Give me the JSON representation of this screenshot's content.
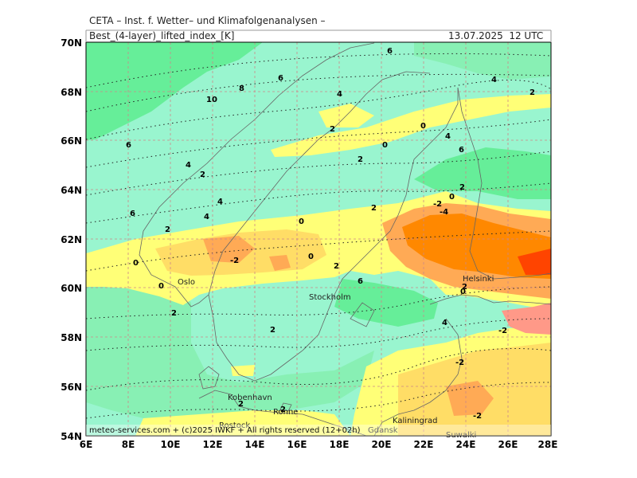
{
  "header": {
    "org": "CETA – Inst. f. Wetter– und Klimafolgenanalysen –",
    "title": "Best_(4-layer)_lifted_index_[K]",
    "datetime": "13.07.2025  12 UTC"
  },
  "axes": {
    "lat_ticks": [
      "70N",
      "68N",
      "66N",
      "64N",
      "62N",
      "60N",
      "58N",
      "56N",
      "54N"
    ],
    "lon_ticks": [
      "6E",
      "8E",
      "10E",
      "12E",
      "14E",
      "16E",
      "18E",
      "20E",
      "22E",
      "24E",
      "26E",
      "28E"
    ]
  },
  "cities": [
    "Oslo",
    "Stockholm",
    "Helsinki",
    "Kobenhavn",
    "Ronne",
    "Rostock",
    "Kaliningrad",
    "Suwalki",
    "Gdansk"
  ],
  "contour_labels": [
    "6",
    "6",
    "4",
    "2",
    "8",
    "10",
    "6",
    "4",
    "2",
    "0",
    "0",
    "4",
    "6",
    "2",
    "4",
    "2",
    "6",
    "4",
    "4",
    "2",
    "2",
    "0",
    "-2",
    "-4",
    "-2",
    "0",
    "0",
    "2",
    "6",
    "2",
    "0",
    "0",
    "2",
    "4",
    "-2",
    "2",
    "0",
    "2",
    "2",
    "2",
    "-2",
    "-2"
  ],
  "copyright": "meteo-services.com + (c)2025 IWKF + All rights reserved (12+02h)",
  "colors": {
    "ocean_cyan": "#99f5cf",
    "green_strong": "#66ee99",
    "green_mid": "#88f0b4",
    "yellow": "#ffff77",
    "light_orange": "#ffdd66",
    "orange": "#ffaa55",
    "dark_orange": "#ff8800",
    "red": "#ff4400",
    "pink": "#ff9988"
  }
}
